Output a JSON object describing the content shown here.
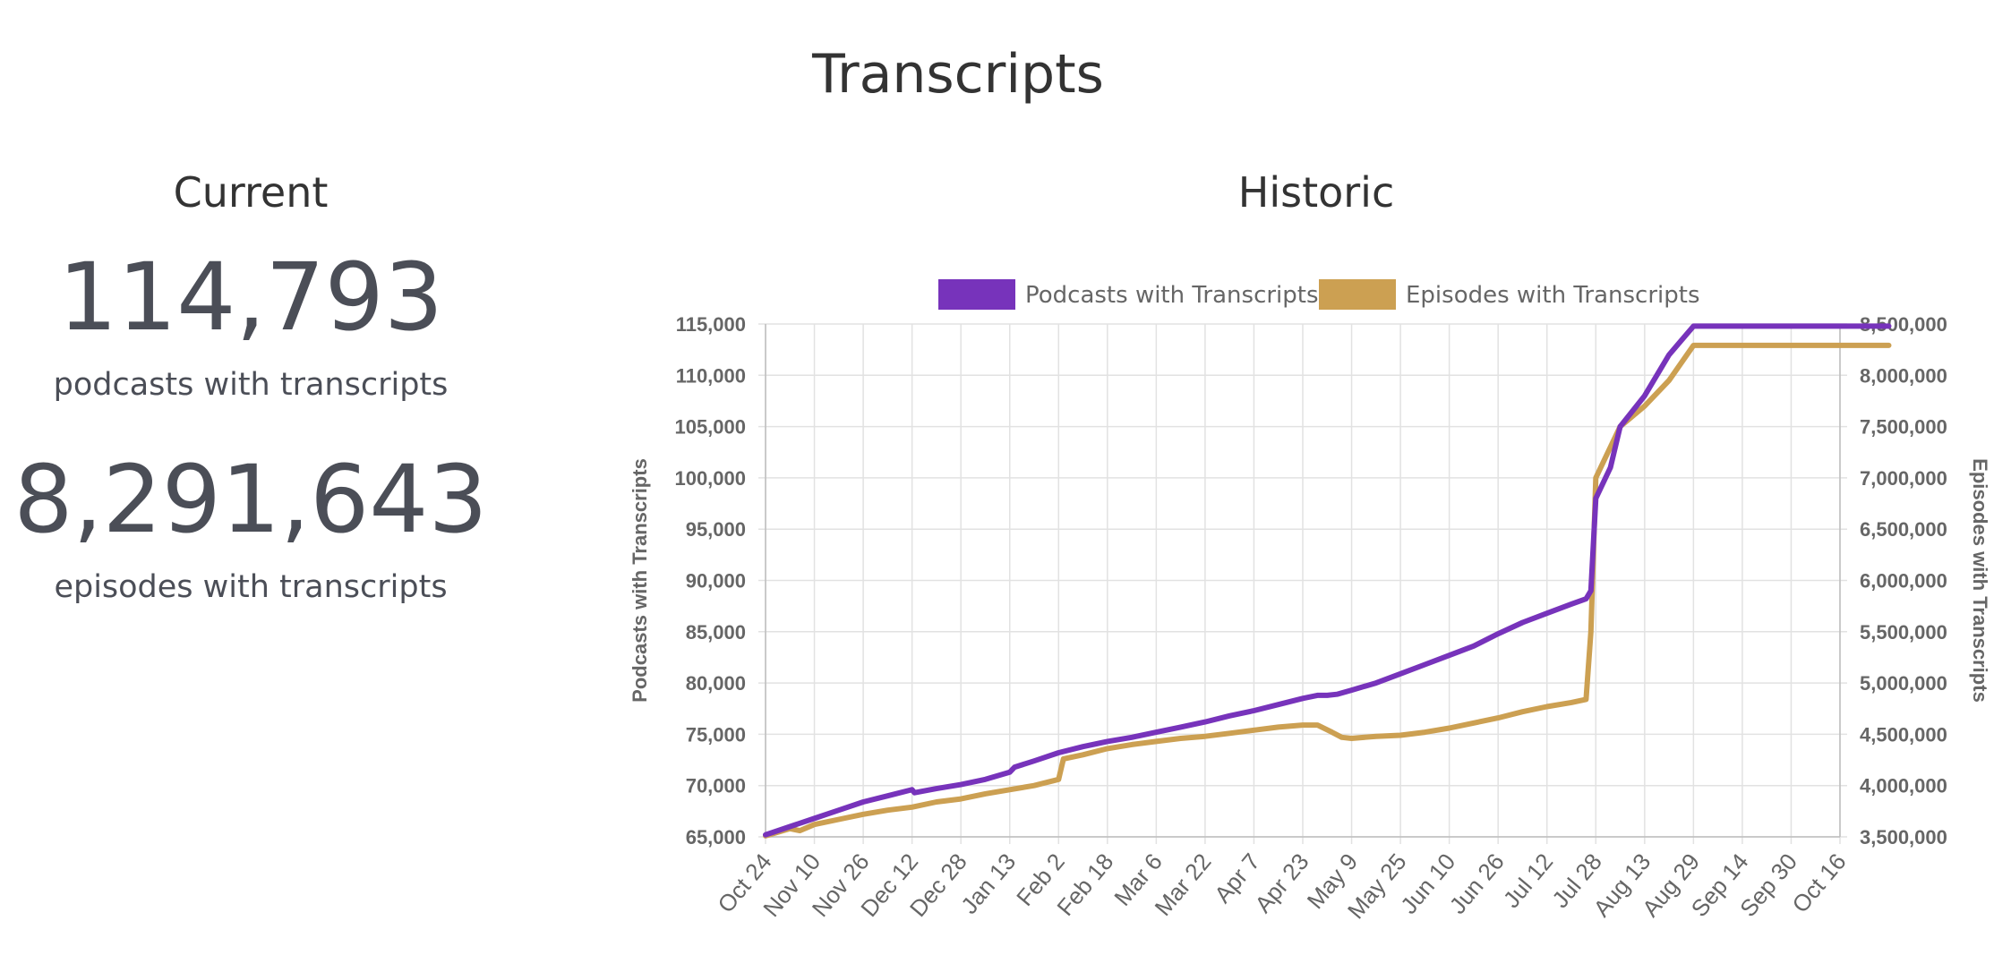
{
  "page": {
    "title": "Transcripts"
  },
  "current": {
    "heading": "Current",
    "podcasts_value": "114,793",
    "podcasts_label": "podcasts with transcripts",
    "episodes_value": "8,291,643",
    "episodes_label": "episodes with transcripts"
  },
  "historic": {
    "heading": "Historic"
  },
  "chart_data": {
    "type": "line",
    "title": "Historic",
    "legend_position": "top",
    "grid": true,
    "categories": [
      "Oct 24",
      "Nov 10",
      "Nov 26",
      "Dec 12",
      "Dec 28",
      "Jan 13",
      "Feb 2",
      "Feb 18",
      "Mar 6",
      "Mar 22",
      "Apr 7",
      "Apr 23",
      "May 9",
      "May 25",
      "Jun 10",
      "Jun 26",
      "Jul 12",
      "Jul 28",
      "Aug 13",
      "Aug 29",
      "Sep 14",
      "Sep 30",
      "Oct 16"
    ],
    "y_left": {
      "label": "Podcasts with Transcripts",
      "range": [
        65000,
        115000
      ],
      "ticks": [
        65000,
        70000,
        75000,
        80000,
        85000,
        90000,
        95000,
        100000,
        105000,
        110000,
        115000
      ],
      "tick_labels": [
        "65,000",
        "70,000",
        "75,000",
        "80,000",
        "85,000",
        "90,000",
        "95,000",
        "100,000",
        "105,000",
        "110,000",
        "115,000"
      ]
    },
    "y_right": {
      "label": "Episodes with Transcripts",
      "range": [
        3500000,
        8500000
      ],
      "ticks": [
        3500000,
        4000000,
        4500000,
        5000000,
        5500000,
        6000000,
        6500000,
        7000000,
        7500000,
        8000000,
        8500000
      ],
      "tick_labels": [
        "3,500,000",
        "4,000,000",
        "4,500,000",
        "5,000,000",
        "5,500,000",
        "6,000,000",
        "6,500,000",
        "7,000,000",
        "7,500,000",
        "8,000,000",
        "8,500,000"
      ]
    },
    "series": [
      {
        "name": "Podcasts with Transcripts",
        "axis": "left",
        "color": "#7733bb",
        "points": [
          [
            0,
            65200
          ],
          [
            0.5,
            66000
          ],
          [
            1,
            66800
          ],
          [
            1.5,
            67600
          ],
          [
            2,
            68400
          ],
          [
            2.5,
            69000
          ],
          [
            3,
            69600
          ],
          [
            3.05,
            69300
          ],
          [
            3.5,
            69700
          ],
          [
            4,
            70100
          ],
          [
            4.5,
            70600
          ],
          [
            5,
            71300
          ],
          [
            5.1,
            71800
          ],
          [
            5.5,
            72400
          ],
          [
            6,
            73200
          ],
          [
            6.5,
            73800
          ],
          [
            7,
            74300
          ],
          [
            7.5,
            74700
          ],
          [
            8,
            75200
          ],
          [
            8.5,
            75700
          ],
          [
            9,
            76200
          ],
          [
            9.5,
            76800
          ],
          [
            10,
            77300
          ],
          [
            10.5,
            77900
          ],
          [
            11,
            78500
          ],
          [
            11.3,
            78800
          ],
          [
            11.5,
            78800
          ],
          [
            11.7,
            78900
          ],
          [
            12,
            79300
          ],
          [
            12.5,
            80000
          ],
          [
            13,
            80900
          ],
          [
            13.5,
            81800
          ],
          [
            14,
            82700
          ],
          [
            14.5,
            83600
          ],
          [
            15,
            84800
          ],
          [
            15.5,
            85900
          ],
          [
            16,
            86800
          ],
          [
            16.5,
            87700
          ],
          [
            16.8,
            88200
          ],
          [
            16.9,
            89000
          ],
          [
            17,
            98000
          ],
          [
            17.3,
            101000
          ],
          [
            17.5,
            105000
          ],
          [
            18,
            108000
          ],
          [
            18.5,
            112000
          ],
          [
            19,
            114793
          ],
          [
            23,
            114793
          ]
        ]
      },
      {
        "name": "Episodes with Transcripts",
        "axis": "right",
        "color": "#cca052",
        "points": [
          [
            0,
            3510000
          ],
          [
            0.5,
            3580000
          ],
          [
            0.7,
            3560000
          ],
          [
            1,
            3620000
          ],
          [
            1.5,
            3670000
          ],
          [
            2,
            3720000
          ],
          [
            2.5,
            3760000
          ],
          [
            3,
            3790000
          ],
          [
            3.5,
            3840000
          ],
          [
            4,
            3870000
          ],
          [
            4.5,
            3920000
          ],
          [
            5,
            3960000
          ],
          [
            5.5,
            4000000
          ],
          [
            6,
            4060000
          ],
          [
            6.1,
            4260000
          ],
          [
            6.5,
            4300000
          ],
          [
            7,
            4360000
          ],
          [
            7.5,
            4400000
          ],
          [
            8,
            4430000
          ],
          [
            8.5,
            4460000
          ],
          [
            9,
            4480000
          ],
          [
            9.5,
            4510000
          ],
          [
            10,
            4540000
          ],
          [
            10.5,
            4570000
          ],
          [
            11,
            4590000
          ],
          [
            11.3,
            4590000
          ],
          [
            11.6,
            4520000
          ],
          [
            11.8,
            4470000
          ],
          [
            12,
            4460000
          ],
          [
            12.5,
            4480000
          ],
          [
            13,
            4490000
          ],
          [
            13.5,
            4520000
          ],
          [
            14,
            4560000
          ],
          [
            14.5,
            4610000
          ],
          [
            15,
            4660000
          ],
          [
            15.5,
            4720000
          ],
          [
            16,
            4770000
          ],
          [
            16.5,
            4810000
          ],
          [
            16.8,
            4840000
          ],
          [
            16.9,
            5500000
          ],
          [
            17,
            7000000
          ],
          [
            17.3,
            7300000
          ],
          [
            17.5,
            7500000
          ],
          [
            18,
            7700000
          ],
          [
            18.5,
            7950000
          ],
          [
            19,
            8291643
          ],
          [
            23,
            8291643
          ]
        ]
      }
    ]
  }
}
